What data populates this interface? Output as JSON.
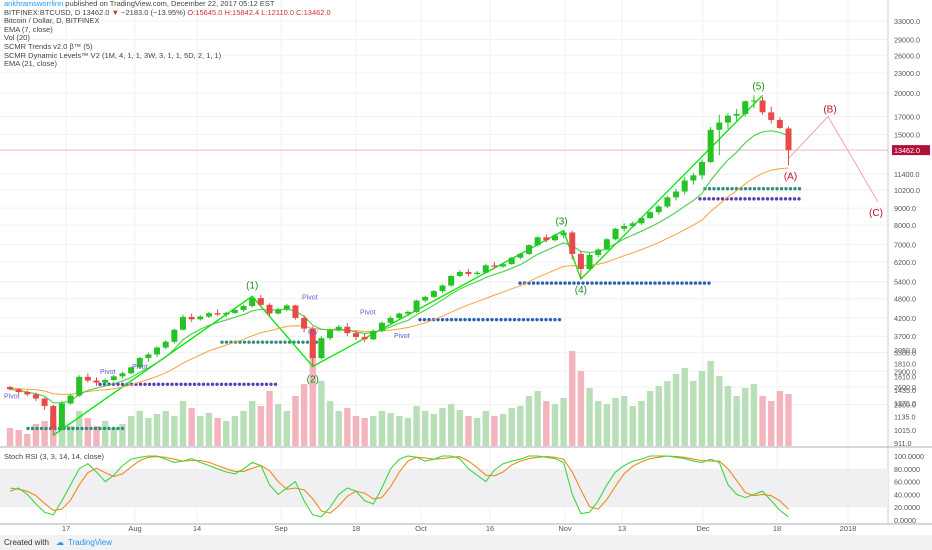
{
  "header": {
    "user": "ankhramsworrlinn",
    "published": "published on TradingView.com, December 22, 2017 05:12 EST",
    "symbol": "BITFINEX:BTCUSD, D",
    "last": "13462.0",
    "change_arrow": "▼",
    "change": "−2183.0 (−13.95%)",
    "ohlc": "O:15645.0 H:15842.4 L:12110.0 C:13462.0"
  },
  "legend": [
    "Bitcoin / Dollar, D, BITFINEX",
    "EMA (7, close)",
    "Vol (20)",
    "SCMR Trends v2.0 β™ (5)",
    "SCMR Dynamic Levels™ V2 (1M, 4, 1, 1, 3W, 3, 1, 1, 5D, 2, 1, 1)",
    "EMA (21, close)"
  ],
  "rsi_legend": "Stoch RSI (3, 3, 14, 14, close)",
  "footer": {
    "created": "Created with",
    "brand": "TradingView"
  },
  "colors": {
    "up": "#26c226",
    "down": "#e84a4a",
    "ema7": "#33cc33",
    "ema21": "#f7a13a",
    "wave": "#00e600",
    "projection": "#f5a3ad",
    "level_blue": "#2b5fb8",
    "level_teal": "#2f8f7a",
    "level_purple": "#5b3fb5",
    "price_tag": "#b0103a",
    "rsi_k": "#3fd63f",
    "rsi_d": "#f08a1a"
  },
  "chart_data": {
    "type": "candlestick",
    "symbol": "BTCUSD",
    "interval": "D",
    "price_axis_ticks": [
      33000,
      29000,
      26000,
      23000,
      20000,
      17000,
      15000,
      13462,
      11400,
      10200,
      9000,
      8000,
      7000,
      6200,
      5400,
      4800,
      4200,
      3700,
      3300,
      2900,
      2600,
      2300
    ],
    "price_scale": "log",
    "current_price": "13462.0",
    "x_ticks": [
      "17",
      "Aug",
      "14",
      "Sep",
      "18",
      "Oct",
      "16",
      "Nov",
      "13",
      "Dec",
      "18",
      "2018"
    ],
    "ohlc": [
      [
        2600,
        2620,
        2540,
        2560
      ],
      [
        2560,
        2580,
        2480,
        2510
      ],
      [
        2510,
        2540,
        2440,
        2470
      ],
      [
        2470,
        2500,
        2360,
        2400
      ],
      [
        2400,
        2420,
        2220,
        2280
      ],
      [
        2280,
        2300,
        1860,
        1950
      ],
      [
        1950,
        2360,
        1930,
        2320
      ],
      [
        2320,
        2480,
        2300,
        2450
      ],
      [
        2450,
        2820,
        2430,
        2790
      ],
      [
        2790,
        2860,
        2680,
        2720
      ],
      [
        2720,
        2780,
        2620,
        2680
      ],
      [
        2680,
        2760,
        2640,
        2730
      ],
      [
        2730,
        2830,
        2700,
        2800
      ],
      [
        2800,
        2890,
        2760,
        2860
      ],
      [
        2860,
        3000,
        2840,
        2980
      ],
      [
        2980,
        3200,
        2960,
        3180
      ],
      [
        3180,
        3300,
        3100,
        3260
      ],
      [
        3260,
        3450,
        3200,
        3420
      ],
      [
        3420,
        3600,
        3380,
        3560
      ],
      [
        3560,
        3900,
        3520,
        3870
      ],
      [
        3870,
        4300,
        3850,
        4230
      ],
      [
        4230,
        4330,
        4080,
        4160
      ],
      [
        4160,
        4280,
        4120,
        4240
      ],
      [
        4240,
        4380,
        4200,
        4340
      ],
      [
        4340,
        4460,
        4250,
        4300
      ],
      [
        4300,
        4380,
        4220,
        4350
      ],
      [
        4350,
        4480,
        4320,
        4440
      ],
      [
        4440,
        4600,
        4380,
        4560
      ],
      [
        4560,
        4880,
        4520,
        4820
      ],
      [
        4820,
        4920,
        4550,
        4600
      ],
      [
        4600,
        4650,
        4250,
        4330
      ],
      [
        4330,
        4500,
        4300,
        4460
      ],
      [
        4460,
        4620,
        4400,
        4580
      ],
      [
        4580,
        4600,
        4150,
        4200
      ],
      [
        4200,
        4280,
        3800,
        3900
      ],
      [
        3900,
        3960,
        3000,
        3180
      ],
      [
        3180,
        3700,
        3150,
        3650
      ],
      [
        3650,
        3900,
        3600,
        3850
      ],
      [
        3850,
        4000,
        3820,
        3950
      ],
      [
        3950,
        4050,
        3700,
        3780
      ],
      [
        3780,
        3850,
        3600,
        3680
      ],
      [
        3680,
        3760,
        3550,
        3620
      ],
      [
        3620,
        3880,
        3600,
        3840
      ],
      [
        3840,
        4100,
        3800,
        4060
      ],
      [
        4060,
        4250,
        4000,
        4200
      ],
      [
        4200,
        4360,
        4150,
        4330
      ],
      [
        4330,
        4420,
        4250,
        4380
      ],
      [
        4380,
        4760,
        4350,
        4740
      ],
      [
        4740,
        4900,
        4680,
        4860
      ],
      [
        4860,
        5100,
        4820,
        5060
      ],
      [
        5060,
        5300,
        5000,
        5260
      ],
      [
        5260,
        5650,
        5220,
        5620
      ],
      [
        5620,
        5850,
        5580,
        5780
      ],
      [
        5780,
        5900,
        5600,
        5700
      ],
      [
        5700,
        5820,
        5640,
        5750
      ],
      [
        5750,
        6100,
        5720,
        6050
      ],
      [
        6050,
        6200,
        5900,
        6000
      ],
      [
        6000,
        6150,
        5950,
        6100
      ],
      [
        6100,
        6420,
        6080,
        6380
      ],
      [
        6380,
        6600,
        6300,
        6550
      ],
      [
        6550,
        7000,
        6500,
        6960
      ],
      [
        6960,
        7400,
        6900,
        7350
      ],
      [
        7350,
        7500,
        7100,
        7200
      ],
      [
        7200,
        7520,
        7150,
        7450
      ],
      [
        7450,
        7700,
        7300,
        7600
      ],
      [
        7600,
        7700,
        6300,
        6550
      ],
      [
        6550,
        6700,
        5500,
        5900
      ],
      [
        5900,
        6600,
        5850,
        6500
      ],
      [
        6500,
        6800,
        6400,
        6750
      ],
      [
        6750,
        7300,
        6700,
        7250
      ],
      [
        7250,
        7850,
        7200,
        7800
      ],
      [
        7800,
        8100,
        7650,
        7950
      ],
      [
        7950,
        8200,
        7850,
        8100
      ],
      [
        8100,
        8450,
        8000,
        8400
      ],
      [
        8400,
        8800,
        8350,
        8750
      ],
      [
        8750,
        9200,
        8600,
        9100
      ],
      [
        9100,
        9800,
        9000,
        9700
      ],
      [
        9700,
        10300,
        9500,
        10100
      ],
      [
        10100,
        11200,
        9900,
        10900
      ],
      [
        10900,
        11500,
        10600,
        11300
      ],
      [
        11300,
        12600,
        11000,
        12400
      ],
      [
        12400,
        15800,
        12300,
        15500
      ],
      [
        15500,
        17200,
        13000,
        16300
      ],
      [
        16300,
        17400,
        15600,
        17100
      ],
      [
        17100,
        17900,
        16500,
        17300
      ],
      [
        17300,
        19000,
        17000,
        18900
      ],
      [
        18900,
        19700,
        18000,
        19000
      ],
      [
        19000,
        19500,
        17200,
        17500
      ],
      [
        17500,
        18200,
        16200,
        16600
      ],
      [
        16600,
        16900,
        15600,
        15700
      ],
      [
        15645,
        15842,
        12110,
        13462
      ]
    ],
    "ema7": [
      2560,
      2540,
      2510,
      2480,
      2440,
      2330,
      2330,
      2360,
      2470,
      2540,
      2580,
      2620,
      2660,
      2710,
      2780,
      2880,
      2970,
      3080,
      3200,
      3380,
      3610,
      3760,
      3880,
      3990,
      4070,
      4140,
      4220,
      4300,
      4410,
      4460,
      4430,
      4440,
      4470,
      4400,
      4250,
      3990,
      3880,
      3870,
      3890,
      3860,
      3810,
      3770,
      3790,
      3860,
      3950,
      4050,
      4130,
      4290,
      4430,
      4590,
      4760,
      4960,
      5130,
      5280,
      5400,
      5560,
      5680,
      5790,
      5930,
      6080,
      6290,
      6530,
      6710,
      6890,
      7070,
      6940,
      6660,
      6620,
      6650,
      6800,
      7030,
      7270,
      7470,
      7670,
      7890,
      8140,
      8430,
      8750,
      9120,
      9490,
      9970,
      10900,
      11750,
      12580,
      13260,
      14170,
      14880,
      15290,
      15390,
      15220,
      14880
    ],
    "ema21": [
      2580,
      2570,
      2560,
      2550,
      2530,
      2480,
      2470,
      2470,
      2500,
      2520,
      2540,
      2550,
      2570,
      2600,
      2640,
      2690,
      2740,
      2800,
      2870,
      2960,
      3070,
      3160,
      3250,
      3340,
      3410,
      3480,
      3550,
      3620,
      3710,
      3790,
      3840,
      3900,
      3960,
      3980,
      3970,
      3900,
      3880,
      3860,
      3860,
      3850,
      3840,
      3820,
      3820,
      3840,
      3860,
      3890,
      3930,
      3990,
      4060,
      4150,
      4250,
      4370,
      4490,
      4600,
      4700,
      4810,
      4920,
      5020,
      5140,
      5250,
      5400,
      5570,
      5710,
      5860,
      6000,
      6040,
      6020,
      6060,
      6100,
      6190,
      6330,
      6470,
      6600,
      6750,
      6910,
      7080,
      7300,
      7510,
      7750,
      8000,
      8280,
      8800,
      9250,
      9730,
      10160,
      10650,
      11100,
      11460,
      11710,
      11840,
      11890
    ],
    "volume": [
      0.18,
      0.16,
      0.12,
      0.22,
      0.25,
      0.3,
      0.22,
      0.2,
      0.35,
      0.28,
      0.2,
      0.25,
      0.18,
      0.22,
      0.3,
      0.35,
      0.28,
      0.32,
      0.35,
      0.3,
      0.45,
      0.38,
      0.3,
      0.33,
      0.28,
      0.25,
      0.3,
      0.35,
      0.45,
      0.4,
      0.55,
      0.42,
      0.35,
      0.5,
      0.62,
      1.0,
      0.65,
      0.45,
      0.35,
      0.38,
      0.3,
      0.28,
      0.3,
      0.35,
      0.33,
      0.3,
      0.28,
      0.4,
      0.35,
      0.32,
      0.38,
      0.42,
      0.36,
      0.3,
      0.28,
      0.35,
      0.3,
      0.32,
      0.38,
      0.4,
      0.5,
      0.55,
      0.45,
      0.42,
      0.48,
      0.95,
      0.75,
      0.58,
      0.45,
      0.42,
      0.48,
      0.5,
      0.4,
      0.45,
      0.55,
      0.6,
      0.65,
      0.72,
      0.78,
      0.65,
      0.75,
      0.85,
      0.7,
      0.6,
      0.5,
      0.58,
      0.62,
      0.5,
      0.45,
      0.55,
      0.52
    ],
    "stoch_rsi_k": [
      45,
      50,
      40,
      25,
      12,
      8,
      30,
      55,
      80,
      88,
      75,
      60,
      70,
      85,
      95,
      98,
      100,
      100,
      95,
      90,
      92,
      96,
      90,
      85,
      80,
      75,
      72,
      80,
      90,
      85,
      55,
      40,
      50,
      60,
      30,
      8,
      5,
      20,
      40,
      50,
      45,
      30,
      25,
      50,
      80,
      95,
      100,
      98,
      92,
      95,
      100,
      100,
      96,
      80,
      70,
      60,
      78,
      88,
      92,
      95,
      100,
      100,
      98,
      96,
      90,
      40,
      10,
      12,
      30,
      55,
      75,
      85,
      92,
      95,
      100,
      100,
      100,
      98,
      96,
      92,
      90,
      95,
      90,
      55,
      40,
      35,
      40,
      45,
      30,
      15,
      5
    ],
    "stoch_rsi_d": [
      50,
      48,
      45,
      38,
      26,
      15,
      17,
      31,
      55,
      74,
      81,
      74,
      68,
      72,
      83,
      93,
      98,
      99,
      98,
      95,
      92,
      93,
      93,
      90,
      85,
      80,
      76,
      76,
      81,
      85,
      77,
      60,
      48,
      50,
      47,
      33,
      14,
      11,
      22,
      37,
      45,
      42,
      33,
      35,
      52,
      75,
      92,
      98,
      97,
      95,
      96,
      98,
      99,
      92,
      82,
      70,
      69,
      75,
      86,
      92,
      96,
      98,
      99,
      98,
      95,
      75,
      47,
      21,
      17,
      32,
      53,
      72,
      84,
      91,
      96,
      98,
      100,
      99,
      98,
      95,
      93,
      92,
      92,
      80,
      62,
      43,
      38,
      40,
      38,
      30,
      17
    ]
  },
  "annotations": {
    "waves": [
      "(1)",
      "(2)",
      "(3)",
      "(4)",
      "(5)"
    ],
    "projection": [
      "(A)",
      "(B)",
      "(C)"
    ],
    "pivot_label": "Pivot",
    "pivot_short": "Piv",
    "rsi_ticks": [
      "100.0000",
      "80.0000",
      "60.0000",
      "40.0000",
      "20.0000",
      "0.0000"
    ],
    "price_ticks": [
      "33000.0",
      "29000.0",
      "26000.0",
      "23000.0",
      "20000.0",
      "17000.0",
      "15000.0",
      "11400.0",
      "10200.0",
      "9000.0",
      "8000.0",
      "7000.0",
      "6200.0",
      "5400.0",
      "4800.0",
      "4200.0",
      "3700.0",
      "3300.0",
      "2900.0",
      "2600.0",
      "2300.0",
      "2050.0",
      "1810.0",
      "1610.0",
      "1435.0",
      "1275.0",
      "1135.0",
      "1015.0",
      "911.0"
    ]
  }
}
